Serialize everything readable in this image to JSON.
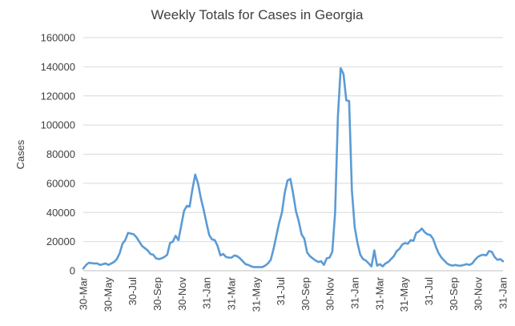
{
  "chart_data": {
    "type": "line",
    "title": "Weekly Totals for Cases in Georgia",
    "xlabel": "",
    "ylabel": "Cases",
    "ylim": [
      0,
      160000
    ],
    "y_ticks": [
      0,
      20000,
      40000,
      60000,
      80000,
      100000,
      120000,
      140000,
      160000
    ],
    "x_tick_labels": [
      "30-Mar",
      "30-May",
      "30-Jul",
      "30-Sep",
      "30-Nov",
      "31-Jan",
      "31-Mar",
      "31-May",
      "31-Jul",
      "30-Sep",
      "30-Nov",
      "31-Jan",
      "31-Mar",
      "31-May",
      "31-Jul",
      "30-Sep",
      "30-Nov",
      "31-Jan"
    ],
    "grid": "horizontal",
    "legend": "none",
    "line_color": "#5b9bd5",
    "series": [
      {
        "name": "Cases",
        "values": [
          1500,
          4000,
          5500,
          5200,
          5000,
          5000,
          4000,
          4500,
          5000,
          4000,
          5000,
          6000,
          8000,
          12000,
          18500,
          21000,
          26000,
          25500,
          25000,
          23000,
          20000,
          17000,
          15500,
          14000,
          11500,
          11000,
          8500,
          8000,
          8500,
          9500,
          11000,
          19000,
          20000,
          24000,
          21000,
          31000,
          41000,
          44500,
          44000,
          56000,
          66000,
          60000,
          50000,
          42000,
          33000,
          24500,
          21500,
          21000,
          17000,
          10500,
          11500,
          9500,
          9000,
          9000,
          10500,
          10000,
          8500,
          6500,
          4500,
          4000,
          3000,
          2500,
          2500,
          2500,
          2500,
          3500,
          5000,
          7500,
          15000,
          24000,
          33000,
          40000,
          53500,
          62000,
          63000,
          53000,
          41000,
          34000,
          25000,
          22000,
          12500,
          10000,
          8500,
          7000,
          6000,
          6500,
          4000,
          8500,
          9000,
          13000,
          40000,
          106000,
          139000,
          135000,
          117000,
          116500,
          55000,
          30000,
          19000,
          11000,
          8000,
          7000,
          5000,
          3000,
          14000,
          3500,
          4500,
          3000,
          5000,
          6000,
          8000,
          10000,
          13500,
          15000,
          18000,
          19000,
          18500,
          21000,
          20500,
          26000,
          27000,
          29000,
          26500,
          25000,
          24500,
          22000,
          16500,
          12000,
          9000,
          7000,
          5000,
          4000,
          3500,
          4000,
          3500,
          3500,
          4000,
          4500,
          4000,
          5000,
          7500,
          9500,
          10500,
          11000,
          10500,
          13500,
          13000,
          9500,
          7500,
          8000,
          6500
        ]
      }
    ]
  }
}
